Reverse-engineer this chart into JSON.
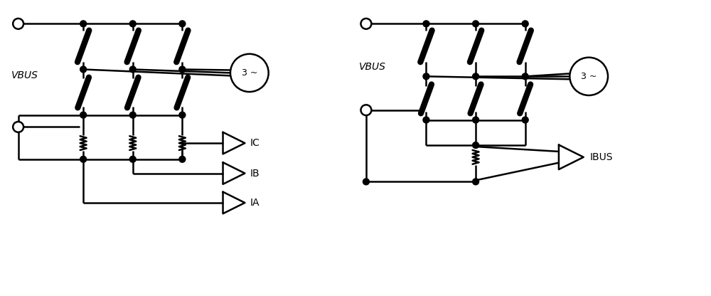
{
  "bg_color": "#ffffff",
  "line_color": "#000000",
  "lw": 1.8,
  "lw_thick": 6,
  "fig_w": 10.0,
  "fig_h": 4.16,
  "dpi": 100,
  "left_diagram": {
    "vbus_label": "VBUS",
    "motor_label": "3 ~",
    "ic_label": "IC",
    "ib_label": "IB",
    "ia_label": "IA"
  },
  "right_diagram": {
    "vbus_label": "VBUS",
    "motor_label": "3 ~",
    "ibus_label": "IBUS"
  }
}
